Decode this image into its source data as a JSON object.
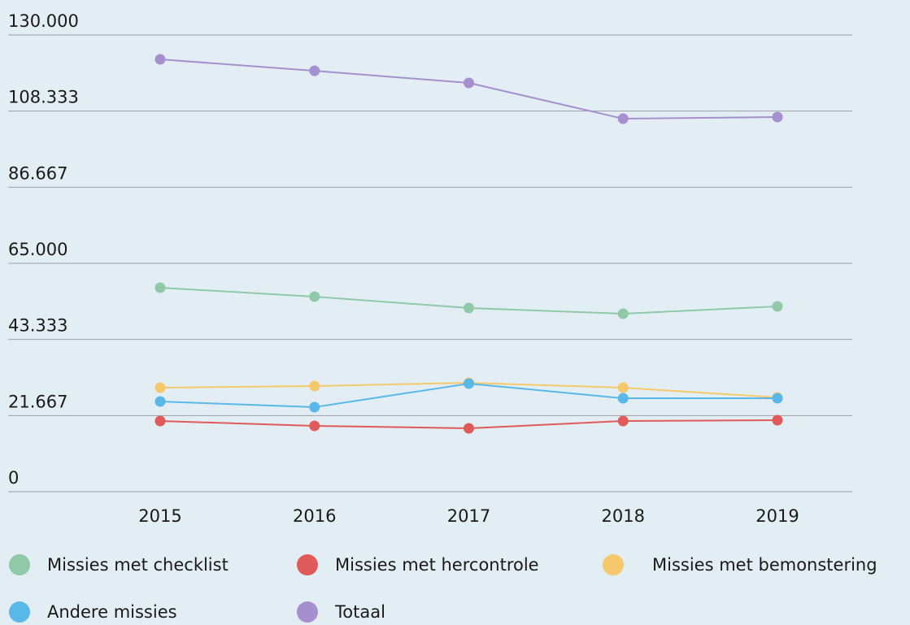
{
  "chart_data": {
    "type": "line",
    "categories": [
      "2015",
      "2016",
      "2017",
      "2018",
      "2019"
    ],
    "series": [
      {
        "name": "Missies met checklist",
        "color": "#8fc9a8",
        "values": [
          58060,
          55520,
          52280,
          50660,
          52740
        ]
      },
      {
        "name": "Missies met hercontrole",
        "color": "#e05a5a",
        "values": [
          20120,
          18740,
          18040,
          20120,
          20360
        ]
      },
      {
        "name": "Missies met bemonstering",
        "color": "#f5c96b",
        "values": [
          29610,
          30070,
          31000,
          29610,
          26830
        ]
      },
      {
        "name": "Andere missies",
        "color": "#5ab8e8",
        "values": [
          25680,
          24060,
          30770,
          26600,
          26600
        ]
      },
      {
        "name": "Totaal",
        "color": "#a58fce",
        "values": [
          123060,
          119800,
          116350,
          106170,
          106640
        ]
      }
    ],
    "ylim": [
      0,
      130000
    ],
    "yticks": [
      0,
      {
        "value": 21667,
        "label": "21.667"
      },
      {
        "value": 43333,
        "label": "43.333"
      },
      {
        "value": 65000,
        "label": "65.000"
      },
      {
        "value": 86667,
        "label": "86.667"
      },
      {
        "value": 108333,
        "label": "108.333"
      },
      {
        "value": 130000,
        "label": "130.000"
      }
    ],
    "grid": true
  }
}
